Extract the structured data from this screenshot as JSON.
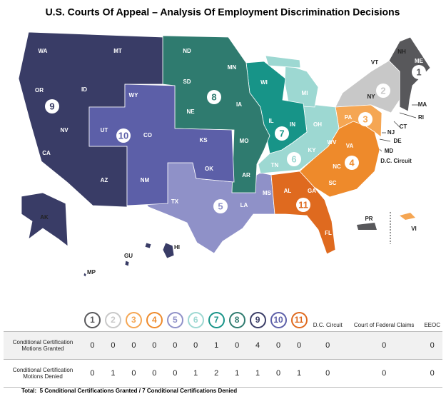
{
  "title": "U.S. Courts Of Appeal – Analysis Of Employment Discrimination Decisions",
  "map": {
    "circuits": [
      {
        "label": "1",
        "color": "#58585b"
      },
      {
        "label": "2",
        "color": "#c8c8c8"
      },
      {
        "label": "3",
        "color": "#f5a653"
      },
      {
        "label": "4",
        "color": "#ee8a2b"
      },
      {
        "label": "5",
        "color": "#8f91c8"
      },
      {
        "label": "6",
        "color": "#9dd8d2"
      },
      {
        "label": "7",
        "color": "#179488"
      },
      {
        "label": "8",
        "color": "#2f7b6f"
      },
      {
        "label": "9",
        "color": "#393c66"
      },
      {
        "label": "10",
        "color": "#5c5fa8"
      },
      {
        "label": "11",
        "color": "#df6a1f"
      }
    ],
    "states": [
      "WA",
      "OR",
      "ID",
      "MT",
      "NV",
      "CA",
      "AZ",
      "AK",
      "HI",
      "GU",
      "MP",
      "WY",
      "UT",
      "CO",
      "NM",
      "KS",
      "OK",
      "TX",
      "ND",
      "SD",
      "NE",
      "MN",
      "IA",
      "MO",
      "AR",
      "LA",
      "MS",
      "WI",
      "IL",
      "IN",
      "MI",
      "OH",
      "KY",
      "TN",
      "AL",
      "GA",
      "FL",
      "WV",
      "VA",
      "NC",
      "SC",
      "PA",
      "NY",
      "VT",
      "NH",
      "ME",
      "MA",
      "RI",
      "CT",
      "NJ",
      "DE",
      "MD",
      "D.C. Circuit",
      "PR",
      "VI"
    ]
  },
  "table": {
    "columns": [
      "1",
      "2",
      "3",
      "4",
      "5",
      "6",
      "7",
      "8",
      "9",
      "10",
      "11",
      "D.C. Circuit",
      "Court of Federal Claims",
      "EEOC"
    ],
    "rows": [
      {
        "label": "Conditional Certification Motions Granted",
        "values": [
          0,
          0,
          0,
          0,
          0,
          0,
          1,
          0,
          4,
          0,
          0,
          0,
          0,
          0
        ]
      },
      {
        "label": "Conditional Certification Motions Denied",
        "values": [
          0,
          1,
          0,
          0,
          0,
          1,
          2,
          1,
          1,
          0,
          1,
          0,
          0,
          0
        ]
      }
    ]
  },
  "total": {
    "label": "Total:",
    "text": "5 Conditional Certifications Granted / 7 Conditional Certifications Denied"
  }
}
